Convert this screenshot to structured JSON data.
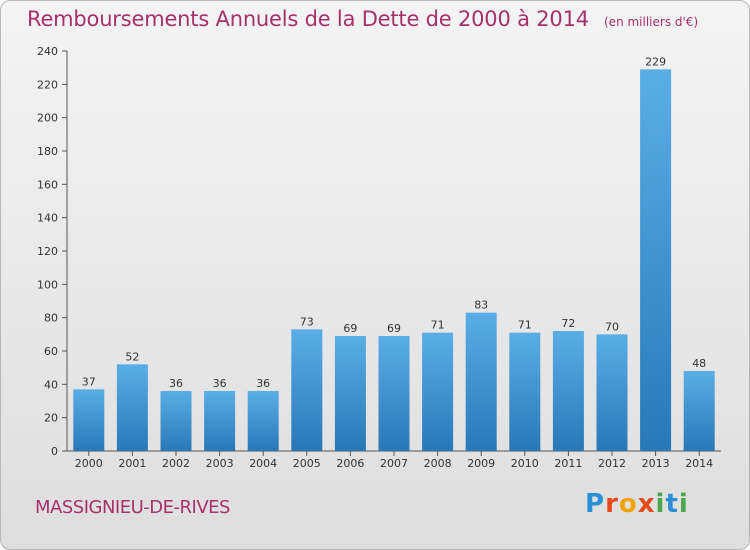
{
  "header": {
    "title": "Remboursements Annuels de la Dette de 2000 à 2014",
    "subtitle": "(en milliers d'€)"
  },
  "footer": {
    "location": "MASSIGNIEU-DE-RIVES",
    "logo_text": "Proxiti"
  },
  "colors": {
    "bar_top": "#5aaee6",
    "bar_bottom": "#2878b8",
    "title": "#a8306b",
    "logo_letters": [
      "#2b8fd6",
      "#e8491d",
      "#f2a200",
      "#e8491d",
      "#4aa84a",
      "#2b8fd6",
      "#4aa84a"
    ]
  },
  "chart_data": {
    "type": "bar",
    "title": "Remboursements Annuels de la Dette de 2000 à 2014",
    "subtitle": "(en milliers d'€)",
    "xlabel": "",
    "ylabel": "",
    "categories": [
      "2000",
      "2001",
      "2002",
      "2003",
      "2004",
      "2005",
      "2006",
      "2007",
      "2008",
      "2009",
      "2010",
      "2011",
      "2012",
      "2013",
      "2014"
    ],
    "values": [
      37,
      52,
      36,
      36,
      36,
      73,
      69,
      69,
      71,
      83,
      71,
      72,
      70,
      229,
      48
    ],
    "ylim": [
      0,
      240
    ],
    "yticks": [
      0,
      20,
      40,
      60,
      80,
      100,
      120,
      140,
      160,
      180,
      200,
      220,
      240
    ],
    "grid": false,
    "legend": "none"
  }
}
